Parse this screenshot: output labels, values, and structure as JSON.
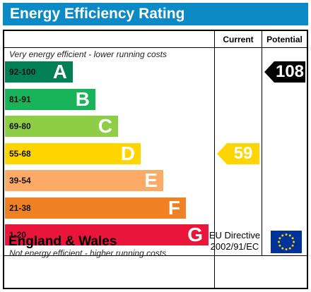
{
  "header": {
    "title": "Energy Efficiency Rating"
  },
  "columns": {
    "current": "Current",
    "potential": "Potential"
  },
  "notes": {
    "top": "Very energy efficient - lower running costs",
    "bottom": "Not energy efficient - higher running costs"
  },
  "footer": {
    "country": "England & Wales",
    "directive_line1": "EU Directive",
    "directive_line2": "2002/91/EC"
  },
  "icons": {
    "flag": "eu-flag-icon"
  },
  "chart_data": {
    "type": "bar",
    "categories": [
      "92-100",
      "81-91",
      "69-80",
      "55-68",
      "39-54",
      "21-38",
      "1-20"
    ],
    "letters": [
      "A",
      "B",
      "C",
      "D",
      "E",
      "F",
      "G"
    ],
    "colors": [
      "#008054",
      "#19b459",
      "#8dce46",
      "#ffd500",
      "#fcaa65",
      "#ef8023",
      "#e9153b"
    ],
    "current": {
      "value": 59,
      "band": "D",
      "color": "#ffd500"
    },
    "potential": {
      "value": 108,
      "band": "A",
      "color": "#000000"
    }
  }
}
